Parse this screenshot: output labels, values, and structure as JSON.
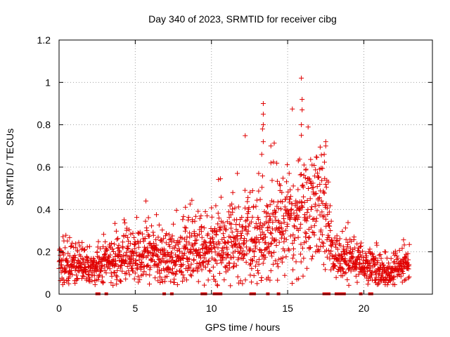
{
  "chart_data": {
    "type": "scatter",
    "title": "Day 340 of 2023, SRMTID for receiver cibg",
    "xlabel": "GPS time / hours",
    "ylabel": "SRMTID / TECUs",
    "xlim": [
      0,
      24.5
    ],
    "ylim": [
      0,
      1.2
    ],
    "xticks": [
      0,
      5,
      10,
      15,
      20
    ],
    "xtick_labels": [
      "0",
      "5",
      "10",
      "15",
      "20"
    ],
    "yticks": [
      0,
      0.2,
      0.4,
      0.6,
      0.8,
      1.0,
      1.2
    ],
    "ytick_labels": [
      "0",
      "0.2",
      "0.4",
      "0.6",
      "0.8",
      "1",
      "1.2"
    ],
    "grid": true,
    "marker": "+",
    "color": "#e00000",
    "series": [
      {
        "name": "SRMTID",
        "profile": {
          "hours": [
            0,
            1,
            2,
            3,
            4,
            5,
            6,
            7,
            8,
            9,
            10,
            11,
            12,
            13,
            14,
            15,
            16,
            17,
            17.5,
            18,
            19,
            20,
            21,
            22,
            23
          ],
          "median": [
            0.14,
            0.15,
            0.12,
            0.15,
            0.17,
            0.17,
            0.18,
            0.17,
            0.19,
            0.2,
            0.22,
            0.23,
            0.25,
            0.27,
            0.3,
            0.32,
            0.35,
            0.4,
            0.35,
            0.18,
            0.17,
            0.14,
            0.11,
            0.12,
            0.14
          ],
          "spread": [
            0.04,
            0.05,
            0.04,
            0.05,
            0.06,
            0.06,
            0.07,
            0.06,
            0.07,
            0.08,
            0.08,
            0.09,
            0.1,
            0.12,
            0.12,
            0.12,
            0.13,
            0.13,
            0.12,
            0.05,
            0.05,
            0.04,
            0.04,
            0.04,
            0.04
          ],
          "count": 1800
        },
        "peaks": [
          {
            "x": 5.7,
            "y": 0.44
          },
          {
            "x": 9.6,
            "y": 0.39
          },
          {
            "x": 11.4,
            "y": 0.48
          },
          {
            "x": 11.7,
            "y": 0.57
          },
          {
            "x": 12.2,
            "y": 0.49
          },
          {
            "x": 13.1,
            "y": 0.57
          },
          {
            "x": 13.3,
            "y": 0.66
          },
          {
            "x": 13.4,
            "y": 0.72
          },
          {
            "x": 13.35,
            "y": 0.78
          },
          {
            "x": 13.4,
            "y": 0.8
          },
          {
            "x": 13.4,
            "y": 0.85
          },
          {
            "x": 13.4,
            "y": 0.9
          },
          {
            "x": 13.9,
            "y": 0.7
          },
          {
            "x": 13.9,
            "y": 0.62
          },
          {
            "x": 15.1,
            "y": 0.57
          },
          {
            "x": 15.7,
            "y": 0.63
          },
          {
            "x": 15.9,
            "y": 0.75
          },
          {
            "x": 15.9,
            "y": 0.8
          },
          {
            "x": 15.95,
            "y": 0.87
          },
          {
            "x": 15.95,
            "y": 0.92
          },
          {
            "x": 15.9,
            "y": 1.02
          },
          {
            "x": 16.2,
            "y": 0.59
          },
          {
            "x": 16.6,
            "y": 0.61
          },
          {
            "x": 17.1,
            "y": 0.59
          },
          {
            "x": 17.4,
            "y": 0.66
          },
          {
            "x": 17.5,
            "y": 0.7
          },
          {
            "x": 17.5,
            "y": 0.72
          }
        ],
        "zero_values": [
          2.5,
          2.6,
          3.1,
          6.9,
          7.4,
          9.4,
          9.6,
          10.2,
          10.4,
          10.6,
          12.6,
          12.7,
          12.8,
          13.7,
          14.4,
          17.4,
          17.5,
          17.6,
          17.7,
          18.2,
          18.3,
          18.4,
          18.5,
          18.6,
          18.7,
          19.8,
          20.4,
          20.5
        ]
      }
    ]
  }
}
